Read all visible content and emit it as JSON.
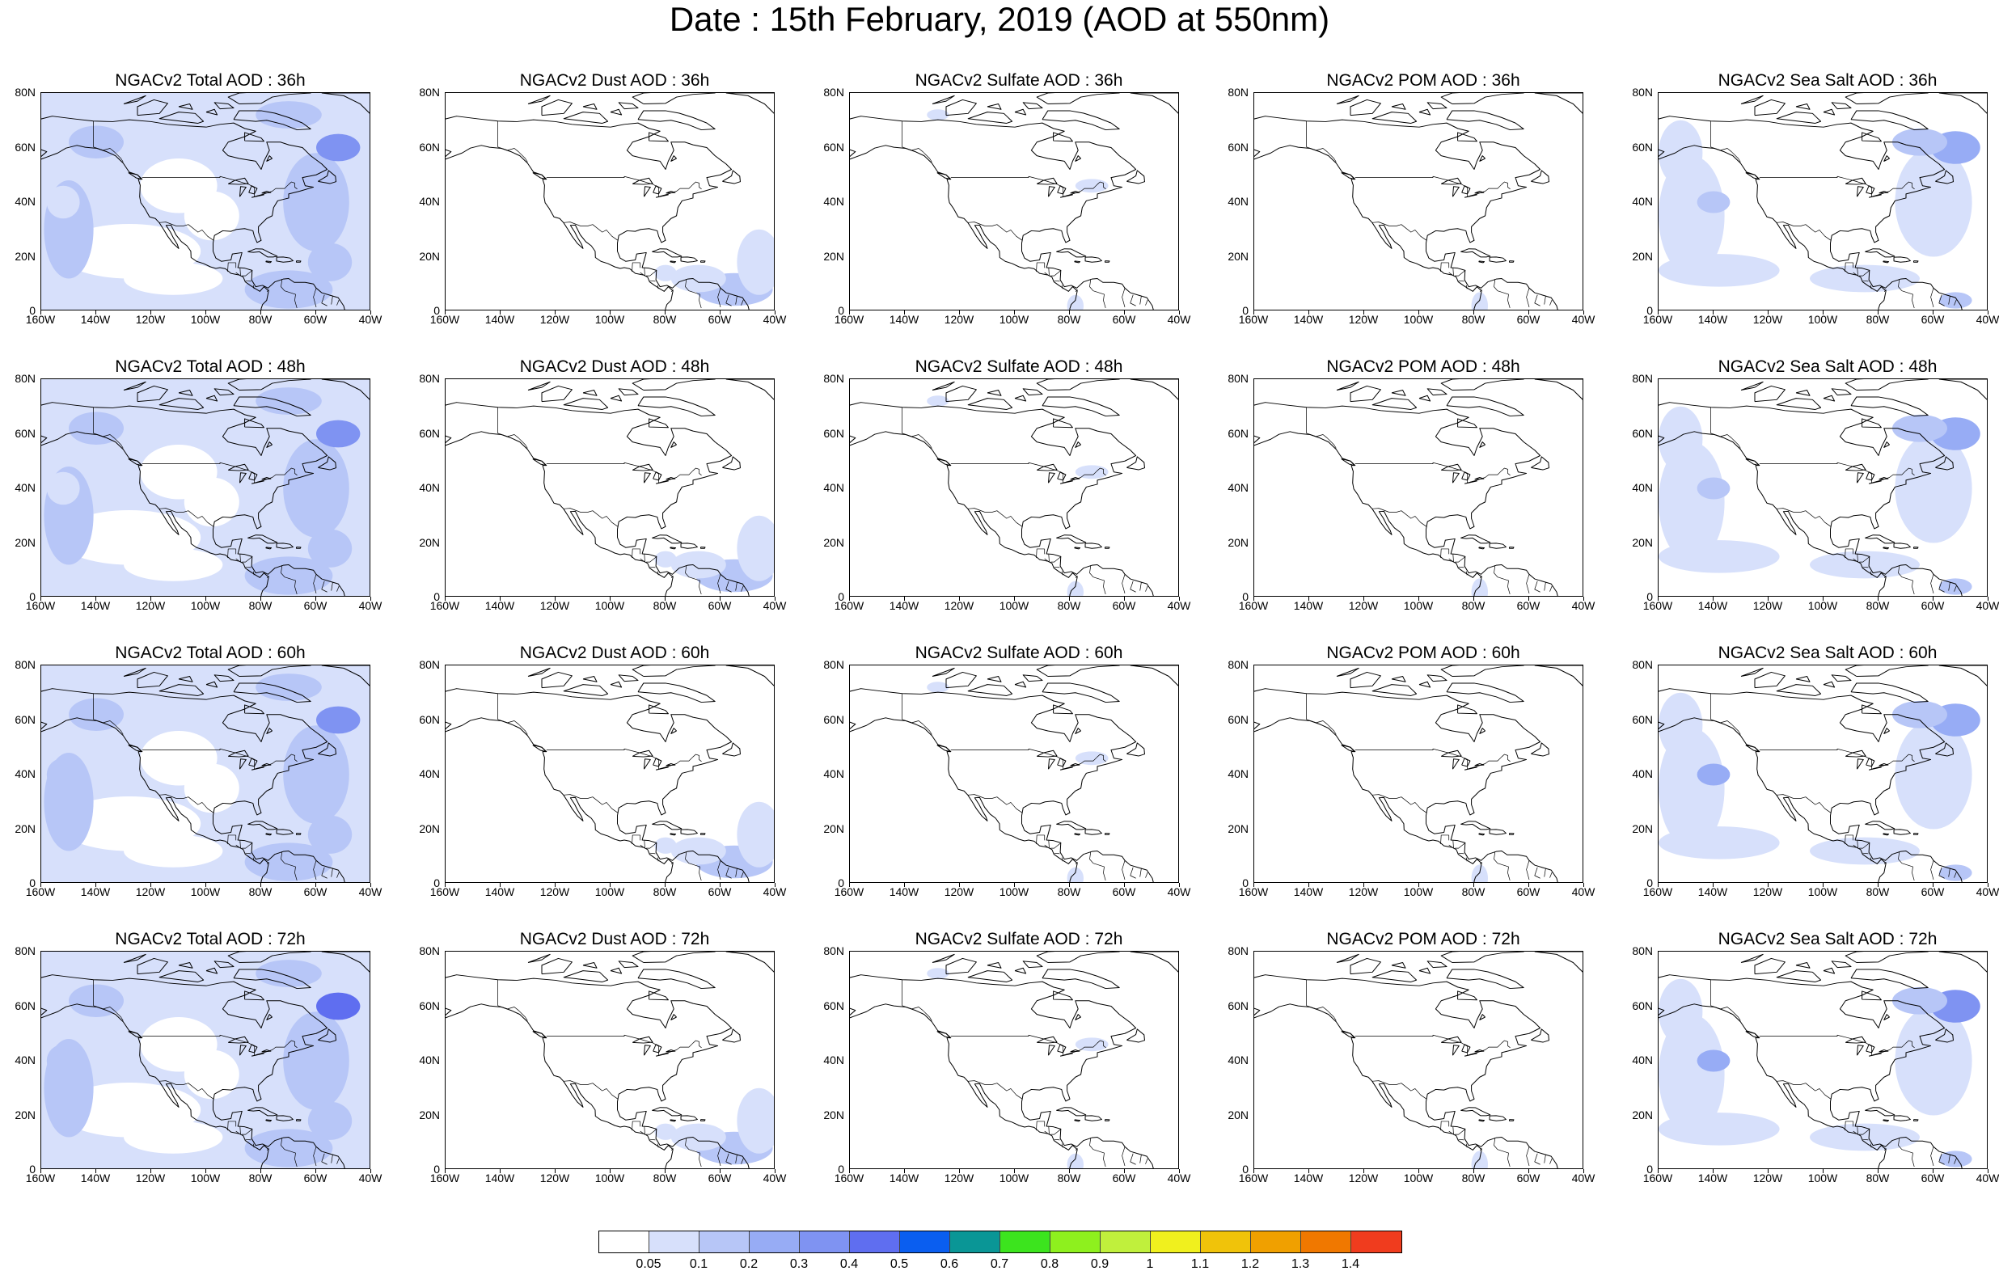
{
  "title": "Date : 15th February, 2019 (AOD at 550nm)",
  "rows": [
    {
      "forecast_hour": "36h",
      "titles": [
        "NGACv2 Total AOD : 36h",
        "NGACv2 Dust AOD : 36h",
        "NGACv2 Sulfate AOD : 36h",
        "NGACv2 POM AOD : 36h",
        "NGACv2 Sea Salt AOD : 36h"
      ]
    },
    {
      "forecast_hour": "48h",
      "titles": [
        "NGACv2 Total AOD : 48h",
        "NGACv2 Dust AOD : 48h",
        "NGACv2 Sulfate AOD : 48h",
        "NGACv2 POM AOD : 48h",
        "NGACv2 Sea Salt AOD : 48h"
      ]
    },
    {
      "forecast_hour": "60h",
      "titles": [
        "NGACv2 Total AOD : 60h",
        "NGACv2 Dust AOD : 60h",
        "NGACv2 Sulfate AOD : 60h",
        "NGACv2 POM AOD : 60h",
        "NGACv2 Sea Salt AOD : 60h"
      ]
    },
    {
      "forecast_hour": "72h",
      "titles": [
        "NGACv2 Total AOD : 72h",
        "NGACv2 Dust AOD : 72h",
        "NGACv2 Sulfate AOD : 72h",
        "NGACv2 POM AOD : 72h",
        "NGACv2 Sea Salt  AOD : 72h"
      ]
    }
  ],
  "species": [
    "total",
    "dust",
    "sulfate",
    "pom",
    "seasalt"
  ],
  "y_ticks": [
    "80N",
    "60N",
    "40N",
    "20N",
    "0"
  ],
  "x_ticks": [
    "160W",
    "140W",
    "120W",
    "100W",
    "80W",
    "60W",
    "40W"
  ],
  "colorbar": {
    "colors": [
      "#ffffff",
      "#d7e0fb",
      "#b7c6f7",
      "#97acf5",
      "#7f93f2",
      "#5f6ef0",
      "#0a5ef0",
      "#0a9696",
      "#3ce41e",
      "#8ef01e",
      "#c0f03c",
      "#f0f01e",
      "#f0c30a",
      "#f0a000",
      "#f07800",
      "#f03c1e"
    ],
    "labels": [
      "0.05",
      "0.1",
      "0.2",
      "0.3",
      "0.4",
      "0.5",
      "0.6",
      "0.7",
      "0.8",
      "0.9",
      "1",
      "1.1",
      "1.2",
      "1.3",
      "1.4"
    ]
  }
}
